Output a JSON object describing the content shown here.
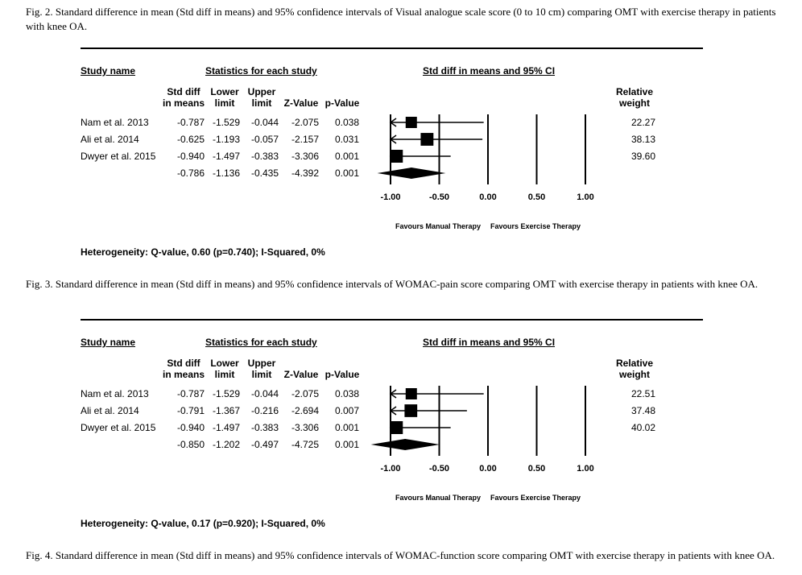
{
  "captions": {
    "fig2": "Fig. 2.  Standard difference in mean (Std diff in means) and 95% confidence intervals of Visual analogue scale score (0 to 10 cm) comparing OMT with exercise therapy in patients with knee OA.",
    "fig3": "Fig. 3.  Standard difference in mean (Std diff in means) and 95% confidence intervals of WOMAC-pain score comparing OMT with exercise therapy in patients with knee OA.",
    "fig4": "Fig. 4.  Standard difference in mean (Std diff in means) and 95% confidence intervals of WOMAC-function score comparing OMT with exercise therapy in patients with knee OA."
  },
  "headers": {
    "study_name": "Study name",
    "stats": "Statistics for each study",
    "ci": "Std diff in means and 95% CI",
    "std_diff": "Std diff",
    "in_means": "in means",
    "lower": "Lower",
    "limit_l": "limit",
    "upper": "Upper",
    "limit_u": "limit",
    "zvalue": "Z-Value",
    "pvalue": "p-Value",
    "relative": "Relative",
    "weight": "weight",
    "favours_left": "Favours Manual Therapy",
    "favours_right": "Favours Exercise Therapy"
  },
  "chart_data": [
    {
      "type": "forest",
      "title": "Visual analogue scale score (0 to 10 cm)",
      "xlim": [
        -1.0,
        1.0
      ],
      "ticks": [
        "-1.00",
        "-0.50",
        "0.00",
        "0.50",
        "1.00"
      ],
      "tick_values": [
        -1.0,
        -0.5,
        0.0,
        0.5,
        1.0
      ],
      "studies": [
        {
          "name": "Nam et al. 2013",
          "est": "-0.787",
          "lower": "-1.529",
          "upper": "-0.044",
          "z": "-2.075",
          "p": "0.038",
          "weight": "22.27"
        },
        {
          "name": "Ali et al. 2014",
          "est": "-0.625",
          "lower": "-1.193",
          "upper": "-0.057",
          "z": "-2.157",
          "p": "0.031",
          "weight": "38.13"
        },
        {
          "name": "Dwyer et al. 2015",
          "est": "-0.940",
          "lower": "-1.497",
          "upper": "-0.383",
          "z": "-3.306",
          "p": "0.001",
          "weight": "39.60"
        }
      ],
      "summary": {
        "est": "-0.786",
        "lower": "-1.136",
        "upper": "-0.435",
        "z": "-4.392",
        "p": "0.001"
      },
      "heterogeneity": "Heterogeneity: Q-value, 0.60 (p=0.740); I-Squared, 0%"
    },
    {
      "type": "forest",
      "title": "WOMAC-pain score",
      "xlim": [
        -1.0,
        1.0
      ],
      "ticks": [
        "-1.00",
        "-0.50",
        "0.00",
        "0.50",
        "1.00"
      ],
      "tick_values": [
        -1.0,
        -0.5,
        0.0,
        0.5,
        1.0
      ],
      "studies": [
        {
          "name": "Nam et al. 2013",
          "est": "-0.787",
          "lower": "-1.529",
          "upper": "-0.044",
          "z": "-2.075",
          "p": "0.038",
          "weight": "22.51"
        },
        {
          "name": "Ali et al. 2014",
          "est": "-0.791",
          "lower": "-1.367",
          "upper": "-0.216",
          "z": "-2.694",
          "p": "0.007",
          "weight": "37.48"
        },
        {
          "name": "Dwyer et al. 2015",
          "est": "-0.940",
          "lower": "-1.497",
          "upper": "-0.383",
          "z": "-3.306",
          "p": "0.001",
          "weight": "40.02"
        }
      ],
      "summary": {
        "est": "-0.850",
        "lower": "-1.202",
        "upper": "-0.497",
        "z": "-4.725",
        "p": "0.001"
      },
      "heterogeneity": "Heterogeneity: Q-value, 0.17 (p=0.920); I-Squared, 0%"
    }
  ]
}
